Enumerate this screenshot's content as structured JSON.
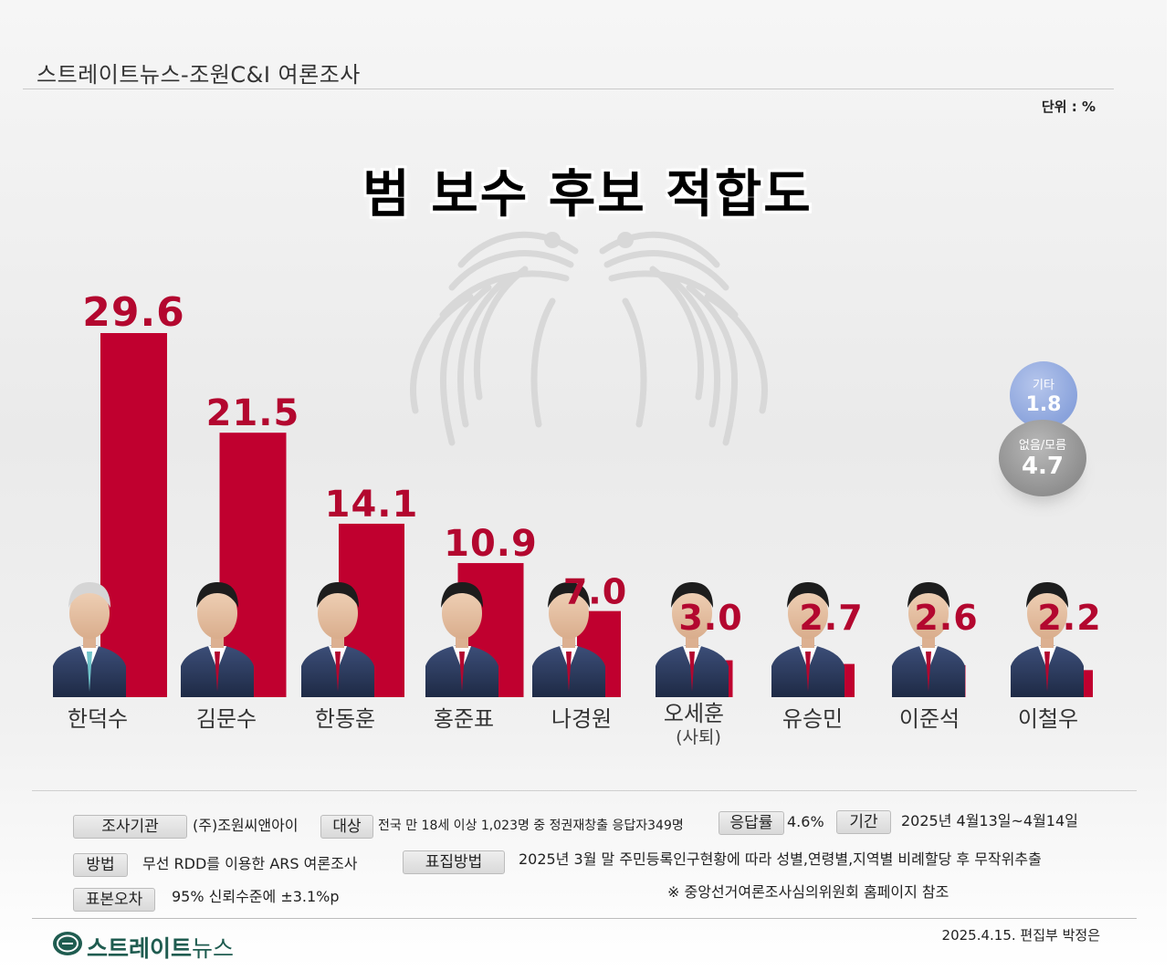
{
  "header": {
    "title": "스트레이트뉴스-조원C&I 여론조사",
    "unit": "단위 : %"
  },
  "chart_data": {
    "type": "bar",
    "title": "범 보수 후보 적합도",
    "categories": [
      "한덕수",
      "김문수",
      "한동훈",
      "홍준표",
      "나경원",
      "오세훈",
      "유승민",
      "이준석",
      "이철우"
    ],
    "category_notes": [
      "",
      "",
      "",
      "",
      "",
      "(사퇴)",
      "",
      "",
      ""
    ],
    "values": [
      29.6,
      21.5,
      14.1,
      10.9,
      7.0,
      3.0,
      2.7,
      2.6,
      2.2
    ],
    "value_labels": [
      "29.6",
      "21.5",
      "14.1",
      "10.9",
      "7.0",
      "3.0",
      "2.7",
      "2.6",
      "2.2"
    ],
    "ylim": [
      0,
      29.6
    ],
    "bar_color": "#c0002f",
    "label_color": "#b3072f",
    "extras": [
      {
        "label": "기타",
        "value": 1.8,
        "value_label": "1.8",
        "color": "#8aa3dc"
      },
      {
        "label": "없음/모름",
        "value": 4.7,
        "value_label": "4.7",
        "color": "#8f8f8f"
      }
    ]
  },
  "info": {
    "agency_label": "조사기관",
    "agency_value": "(주)조원씨앤아이",
    "target_label": "대상",
    "target_value": "전국 만 18세 이상 1,023명 중 정권재창출 응답자349명",
    "rate_label": "응답률",
    "rate_value": "4.6%",
    "period_label": "기간",
    "period_value": "2025년 4월13일~4월14일",
    "method_label": "방법",
    "method_value": "무선 RDD를 이용한 ARS 여론조사",
    "sampling_label": "표집방법",
    "sampling_value": "2025년 3월 말 주민등록인구현황에 따라 성별,연령별,지역별 비례할당 후 무작위추출",
    "error_label": "표본오차",
    "error_value": "95% 신뢰수준에 ±3.1%p",
    "note": "※ 중앙선거여론조사심의위원회 홈페이지 참조"
  },
  "footer": {
    "logo_main": "스트레이트",
    "logo_sub": "뉴스",
    "credit": "2025.4.15. 편집부 박정은"
  }
}
